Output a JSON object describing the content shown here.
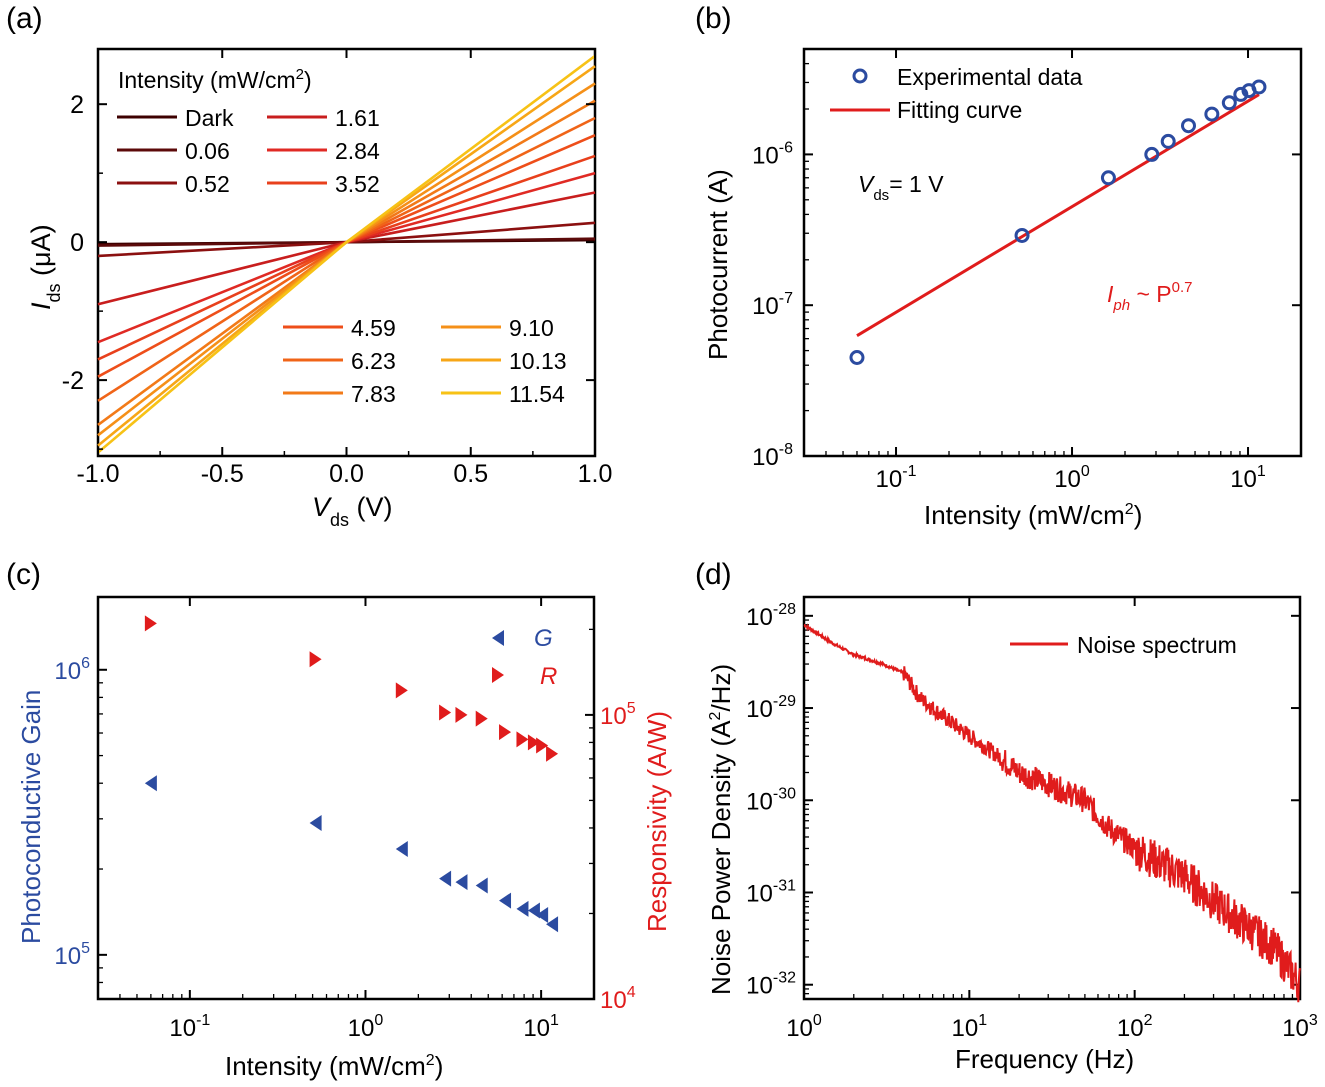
{
  "chart_data": [
    {
      "panel_label": "(a)",
      "type": "line",
      "xlabel_main": "V",
      "xlabel_sub": "ds",
      "xlabel_unit": " (V)",
      "ylabel_main": "I",
      "ylabel_sub": "ds",
      "ylabel_unit": "  (μA)",
      "xlim": [
        -1.0,
        1.0
      ],
      "ylim": [
        -3.1,
        2.8
      ],
      "xticks": [
        -1.0,
        -0.5,
        0.0,
        0.5,
        1.0
      ],
      "xtick_labels": [
        "-1.0",
        "-0.5",
        "0.0",
        "0.5",
        "1.0"
      ],
      "yticks": [
        -2,
        0,
        2
      ],
      "ytick_labels": [
        "-2",
        "0",
        "2"
      ],
      "legend_title": "Intensity (mW/cm",
      "legend_title_sup": "2",
      "legend_title_end": ")",
      "series": [
        {
          "name": "Dark",
          "color": "#3d0000",
          "v_at_neg1": -0.03,
          "v_at_pos1": 0.03
        },
        {
          "name": "0.06",
          "color": "#5c0a0a",
          "v_at_neg1": -0.05,
          "v_at_pos1": 0.05
        },
        {
          "name": "0.52",
          "color": "#8b1010",
          "v_at_neg1": -0.2,
          "v_at_pos1": 0.28
        },
        {
          "name": "1.61",
          "color": "#c81e1e",
          "v_at_neg1": -0.9,
          "v_at_pos1": 0.72
        },
        {
          "name": "2.84",
          "color": "#e02a24",
          "v_at_neg1": -1.45,
          "v_at_pos1": 1.0
        },
        {
          "name": "3.52",
          "color": "#e8401c",
          "v_at_neg1": -1.7,
          "v_at_pos1": 1.25
        },
        {
          "name": "4.59",
          "color": "#ee4e1a",
          "v_at_neg1": -1.95,
          "v_at_pos1": 1.55
        },
        {
          "name": "6.23",
          "color": "#f06418",
          "v_at_neg1": -2.3,
          "v_at_pos1": 1.8
        },
        {
          "name": "7.83",
          "color": "#f27a18",
          "v_at_neg1": -2.65,
          "v_at_pos1": 2.05
        },
        {
          "name": "9.10",
          "color": "#f59018",
          "v_at_neg1": -2.8,
          "v_at_pos1": 2.3
        },
        {
          "name": "10.13",
          "color": "#f7a616",
          "v_at_neg1": -2.95,
          "v_at_pos1": 2.55
        },
        {
          "name": "11.54",
          "color": "#f7c216",
          "v_at_neg1": -3.05,
          "v_at_pos1": 2.7
        }
      ]
    },
    {
      "panel_label": "(b)",
      "type": "scatter",
      "xlabel": "Intensity (mW/cm",
      "xlabel_sup": "2",
      "xlabel_end": ")",
      "ylabel": "Photocurrent (A)",
      "xscale": "log",
      "yscale": "log",
      "xlim": [
        0.03,
        20
      ],
      "ylim": [
        1e-08,
        5e-06
      ],
      "xtick_exps": [
        -1,
        0,
        1
      ],
      "ytick_exps": [
        -8,
        -7,
        -6
      ],
      "tick_base": "10",
      "legend": [
        {
          "name": "Experimental data",
          "marker": "circle",
          "color": "#2b4ba0"
        },
        {
          "name": "Fitting curve",
          "marker": "line",
          "color": "#e01c1c"
        }
      ],
      "x": [
        0.06,
        0.52,
        1.61,
        2.84,
        3.52,
        4.59,
        6.23,
        7.83,
        9.1,
        10.13,
        11.54
      ],
      "y": [
        4.5e-08,
        2.9e-07,
        7e-07,
        1e-06,
        1.22e-06,
        1.55e-06,
        1.85e-06,
        2.2e-06,
        2.5e-06,
        2.65e-06,
        2.8e-06
      ],
      "fit": {
        "a": 4.5e-07,
        "exponent": 0.7,
        "x_range": [
          0.06,
          11.54
        ]
      },
      "annot_vds_main": "V",
      "annot_vds_sub": "ds",
      "annot_vds_val": "= 1 V",
      "annot_law_main": "I",
      "annot_law_sub": "ph",
      "annot_law_mid": " ~ P",
      "annot_law_sup": "0.7"
    },
    {
      "panel_label": "(c)",
      "type": "scatter",
      "xlabel": "Intensity (mW/cm",
      "xlabel_sup": "2",
      "xlabel_end": ")",
      "ylabel_left": "Photoconductive Gain",
      "ylabel_right": "Responsivity (A/W)",
      "xscale": "log",
      "xlim": [
        0.03,
        20
      ],
      "ylim_left": [
        70000.0,
        1800000.0
      ],
      "ylim_right": [
        10000.0,
        260000.0
      ],
      "xtick_exps": [
        -1,
        0,
        1
      ],
      "ytick_left_exps": [
        5,
        6
      ],
      "ytick_right_exps": [
        4,
        5
      ],
      "tick_base": "10",
      "legend": [
        {
          "name": "G",
          "color": "#2b4ba0",
          "marker": "left-triangle"
        },
        {
          "name": "R",
          "color": "#e01c1c",
          "marker": "right-triangle"
        }
      ],
      "x": [
        0.06,
        0.52,
        1.61,
        2.84,
        3.52,
        4.59,
        6.23,
        7.83,
        9.1,
        10.13,
        11.54
      ],
      "G": [
        400000.0,
        290000.0,
        235000.0,
        185000.0,
        180000.0,
        175000.0,
        155000.0,
        145000.0,
        143000.0,
        138000.0,
        128000.0
      ],
      "R": [
        210000.0,
        157000.0,
        122000.0,
        102000.0,
        100000.0,
        97000.0,
        87000.0,
        82000.0,
        80000.0,
        78000.0,
        73000.0
      ]
    },
    {
      "panel_label": "(d)",
      "type": "line",
      "xlabel": "Frequency (Hz)",
      "ylabel": "Noise Power Density (A",
      "ylabel_sup": "2",
      "ylabel_end": "/Hz)",
      "xscale": "log",
      "yscale": "log",
      "xlim": [
        1,
        1000
      ],
      "ylim": [
        7e-33,
        1.6e-28
      ],
      "xtick_exps": [
        0,
        1,
        2,
        3
      ],
      "ytick_exps": [
        -32,
        -31,
        -30,
        -29,
        -28
      ],
      "tick_base": "10",
      "legend": [
        {
          "name": "Noise spectrum",
          "color": "#e01c1c"
        }
      ],
      "series": [
        {
          "name": "Noise spectrum",
          "x": [
            1,
            1.5,
            2,
            3,
            4,
            5,
            7,
            10,
            15,
            20,
            30,
            50,
            70,
            100,
            200,
            300,
            500,
            700,
            1000
          ],
          "y": [
            8e-29,
            5e-29,
            3.8e-29,
            3e-29,
            2.4e-29,
            1.3e-29,
            8e-30,
            5e-30,
            3e-30,
            2e-30,
            1.5e-30,
            1e-30,
            5e-31,
            3e-31,
            1.5e-31,
            8e-32,
            4e-32,
            2.5e-32,
            1e-32
          ]
        }
      ]
    }
  ]
}
